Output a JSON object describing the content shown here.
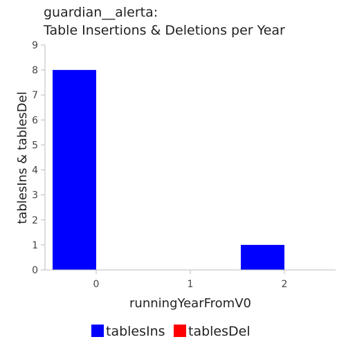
{
  "chart_data": {
    "type": "bar",
    "title_lines": [
      "guardian__alerta:",
      "Table Insertions & Deletions per Year"
    ],
    "xlabel": "runningYearFromV0",
    "ylabel": "tablesIns & tablesDel",
    "categories": [
      "0",
      "1",
      "2"
    ],
    "ylim": [
      0,
      9
    ],
    "yticks": [
      0,
      1,
      2,
      3,
      4,
      5,
      6,
      7,
      8,
      9
    ],
    "grid": false,
    "legend_placement": "bottom-center",
    "series": [
      {
        "name": "tablesIns",
        "color": "#0000ff",
        "values": [
          8,
          0,
          1
        ]
      },
      {
        "name": "tablesDel",
        "color": "#ff0000",
        "values": [
          0,
          0,
          0
        ]
      }
    ]
  }
}
